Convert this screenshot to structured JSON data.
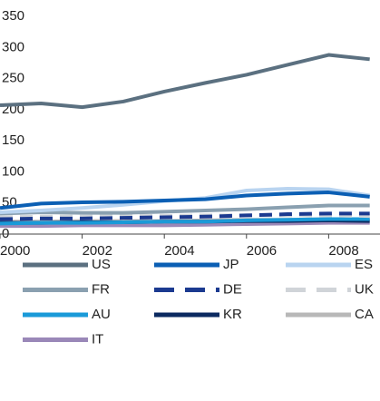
{
  "chart_data": {
    "type": "line",
    "x": [
      2000,
      2001,
      2002,
      2003,
      2004,
      2005,
      2006,
      2007,
      2008,
      2009
    ],
    "xlim": [
      2000,
      2009.25
    ],
    "xticks": [
      2000,
      2002,
      2004,
      2006,
      2008
    ],
    "ylim": [
      0,
      350
    ],
    "yticks": [
      0,
      50,
      100,
      150,
      200,
      250,
      300,
      350
    ],
    "series": [
      {
        "name": "US",
        "color": "#5b7080",
        "values": [
          207,
          210,
          204,
          213,
          229,
          243,
          256,
          272,
          288,
          281
        ]
      },
      {
        "name": "JP",
        "color": "#0b5fb4",
        "values": [
          42,
          49,
          51,
          52,
          54,
          56,
          62,
          65,
          67,
          60
        ]
      },
      {
        "name": "ES",
        "color": "#b9d4f0",
        "values": [
          35,
          38,
          42,
          47,
          53,
          58,
          70,
          73,
          72,
          62
        ]
      },
      {
        "name": "FR",
        "color": "#8aa0b0",
        "values": [
          33,
          35,
          34,
          34,
          36,
          38,
          40,
          43,
          46,
          46
        ]
      },
      {
        "name": "DE",
        "color": "#1b3a90",
        "dashed": true,
        "values": [
          24,
          25,
          25,
          26,
          27,
          28,
          30,
          32,
          33,
          33
        ]
      },
      {
        "name": "UK",
        "color": "#d0d4d8",
        "dashed": true,
        "values": [
          27,
          28,
          28,
          29,
          29,
          30,
          30,
          30,
          30,
          29
        ]
      },
      {
        "name": "AU",
        "color": "#1a9ad8",
        "values": [
          17,
          18,
          18,
          19,
          20,
          20,
          22,
          23,
          24,
          24
        ]
      },
      {
        "name": "KR",
        "color": "#0b2a60",
        "values": [
          18,
          18,
          19,
          19,
          20,
          20,
          21,
          21,
          22,
          21
        ]
      },
      {
        "name": "CA",
        "color": "#b8b8b8",
        "values": [
          20,
          20,
          21,
          21,
          21,
          22,
          23,
          23,
          24,
          24
        ]
      },
      {
        "name": "IT",
        "color": "#9a88b8",
        "values": [
          13,
          13,
          14,
          14,
          14,
          15,
          16,
          17,
          18,
          18
        ]
      }
    ]
  }
}
